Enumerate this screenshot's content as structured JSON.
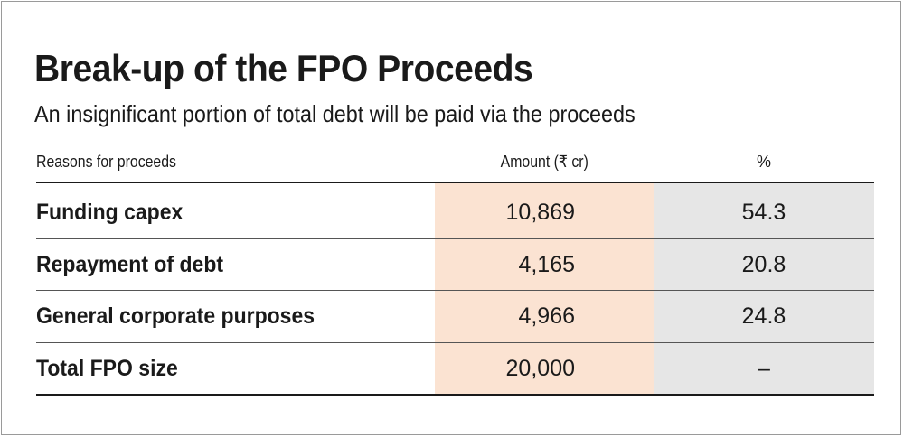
{
  "title": "Break-up of the FPO Proceeds",
  "subtitle": "An insignificant portion of total debt will be paid via the proceeds",
  "colors": {
    "amount_column": "#fbe3d2",
    "percent_column": "#e6e6e6",
    "text": "#1a1a1a"
  },
  "chart_data": {
    "type": "table",
    "title": "Break-up of the FPO Proceeds",
    "subtitle": "An insignificant portion of total debt will be paid via the proceeds",
    "columns": [
      "Reasons for proceeds",
      "Amount (₹ cr)",
      "%"
    ],
    "rows": [
      {
        "reason": "Funding capex",
        "amount": "10,869",
        "percent": "54.3"
      },
      {
        "reason": "Repayment of debt",
        "amount": "4,165",
        "percent": "20.8"
      },
      {
        "reason": "General corporate purposes",
        "amount": "4,966",
        "percent": "24.8"
      },
      {
        "reason": "Total FPO size",
        "amount": "20,000",
        "percent": "–"
      }
    ]
  }
}
